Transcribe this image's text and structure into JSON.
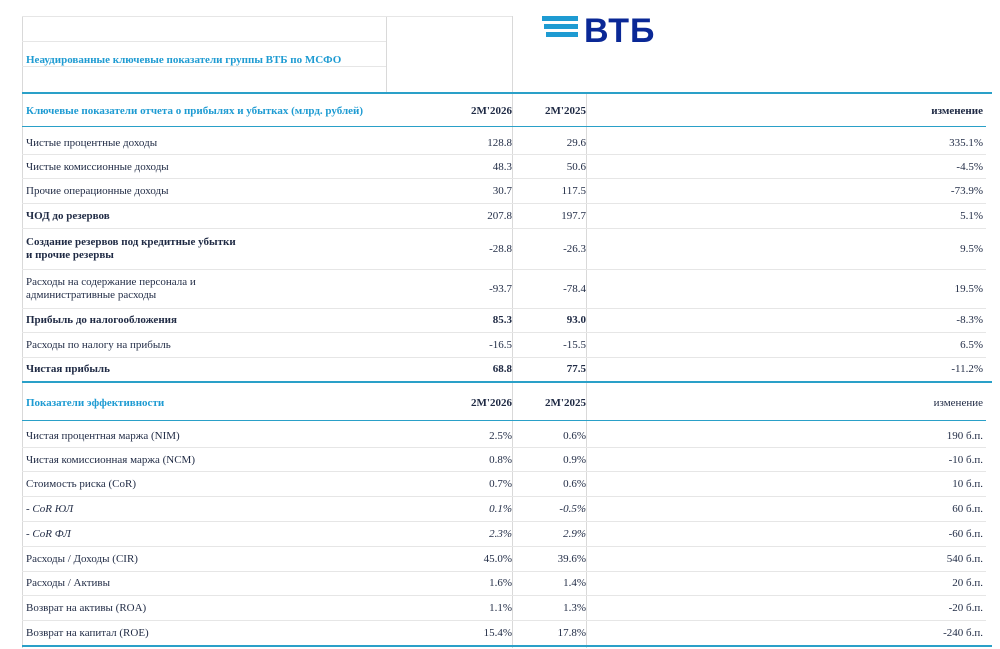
{
  "logo": {
    "text": "ВТБ",
    "brand_color": "#0a2896",
    "accent_color": "#1e9bd2"
  },
  "title": "Неаудированные ключевые показатели группы ВТБ по МСФО",
  "income": {
    "header": {
      "label": "Ключевые показатели отчета о прибылях и убытках (млрд. рублей)",
      "col1": "2М'2026",
      "col2": "2М'2025",
      "col3": "изменение"
    },
    "rows": [
      {
        "label": "Чистые процентные доходы",
        "v1": "128.8",
        "v2": "29.6",
        "chg": "335.1%"
      },
      {
        "label": "Чистые комиссионные доходы",
        "v1": "48.3",
        "v2": "50.6",
        "chg": "-4.5%"
      },
      {
        "label": "Прочие операционные доходы",
        "v1": "30.7",
        "v2": "117.5",
        "chg": "-73.9%"
      },
      {
        "label": "ЧОД до резервов",
        "v1": "207.8",
        "v2": "197.7",
        "chg": "5.1%"
      },
      {
        "label_l1": "Создание резервов под кредитные убытки",
        "label_l2": "и прочие резервы",
        "v1": "-28.8",
        "v2": "-26.3",
        "chg": "9.5%"
      },
      {
        "label_l1": "Расходы на содержание персонала и",
        "label_l2": "административные расходы",
        "v1": "-93.7",
        "v2": "-78.4",
        "chg": "19.5%"
      },
      {
        "label": "Прибыль до налогообложения",
        "v1": "85.3",
        "v2": "93.0",
        "chg": "-8.3%"
      },
      {
        "label": "Расходы по налогу на прибыль",
        "v1": "-16.5",
        "v2": "-15.5",
        "chg": "6.5%"
      },
      {
        "label": "Чистая прибыль",
        "v1": "68.8",
        "v2": "77.5",
        "chg": "-11.2%"
      }
    ]
  },
  "efficiency": {
    "header": {
      "label": "Показатели эффективности",
      "col1": "2М'2026",
      "col2": "2М'2025",
      "col3": "изменение"
    },
    "rows": [
      {
        "label": "Чистая процентная маржа (NIM)",
        "v1": "2.5%",
        "v2": "0.6%",
        "chg": "190 б.п."
      },
      {
        "label": "Чистая комиссионная маржа (NCM)",
        "v1": "0.8%",
        "v2": "0.9%",
        "chg": "-10 б.п."
      },
      {
        "label": "Стоимость риска (CoR)",
        "v1": "0.7%",
        "v2": "0.6%",
        "chg": "10 б.п."
      },
      {
        "label": "-  CoR ЮЛ",
        "v1": "0.1%",
        "v2": "-0.5%",
        "chg": "60 б.п."
      },
      {
        "label": "-  CoR ФЛ",
        "v1": "2.3%",
        "v2": "2.9%",
        "chg": "-60 б.п."
      },
      {
        "label": "Расходы / Доходы (CIR)",
        "v1": "45.0%",
        "v2": "39.6%",
        "chg": "540 б.п."
      },
      {
        "label": "Расходы / Активы",
        "v1": "1.6%",
        "v2": "1.4%",
        "chg": "20 б.п."
      },
      {
        "label": "Возврат на активы (ROA)",
        "v1": "1.1%",
        "v2": "1.3%",
        "chg": "-20 б.п."
      },
      {
        "label": "Возврат на капитал (ROE)",
        "v1": "15.4%",
        "v2": "17.8%",
        "chg": "-240 б.п."
      }
    ]
  }
}
